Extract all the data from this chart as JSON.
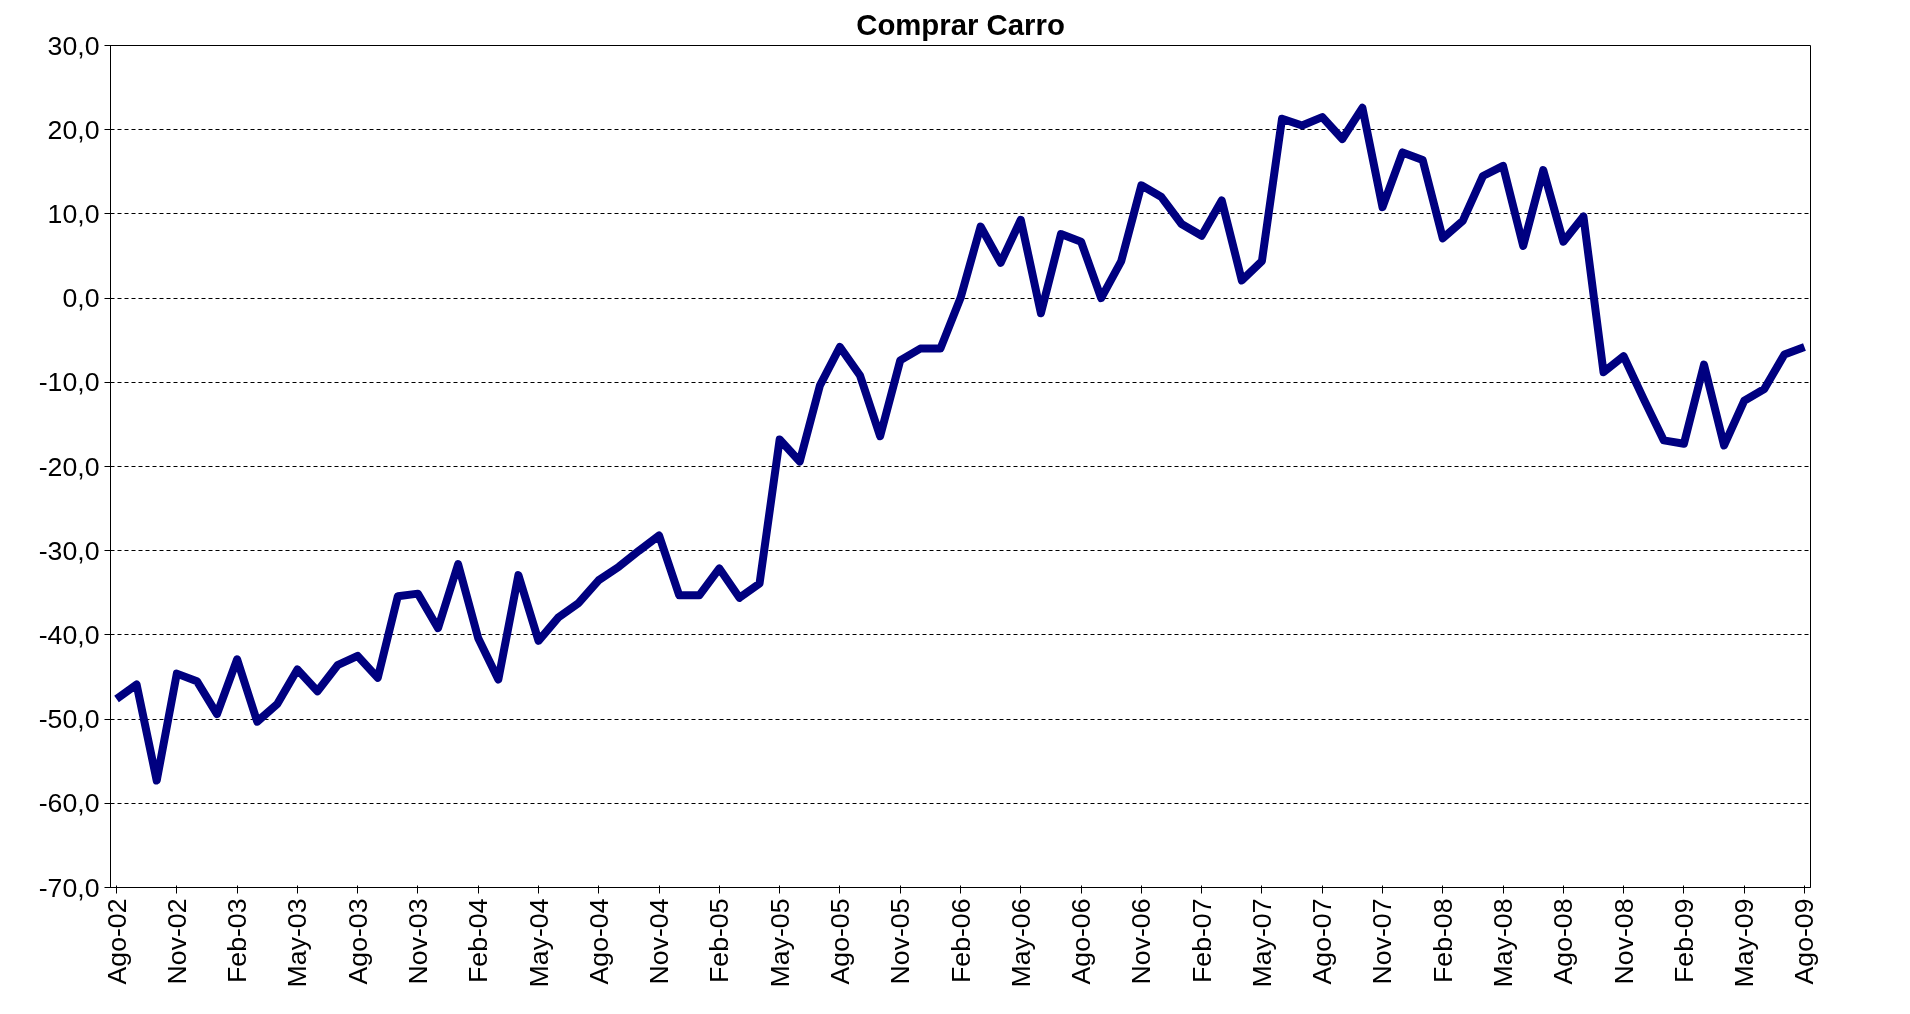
{
  "chart_data": {
    "type": "line",
    "title": "Comprar Carro",
    "categories": [
      "Ago-02",
      null,
      null,
      "Nov-02",
      null,
      null,
      "Feb-03",
      null,
      null,
      "May-03",
      null,
      null,
      "Ago-03",
      null,
      null,
      "Nov-03",
      null,
      null,
      "Feb-04",
      null,
      null,
      "May-04",
      null,
      null,
      "Ago-04",
      null,
      null,
      "Nov-04",
      null,
      null,
      "Feb-05",
      null,
      null,
      "May-05",
      null,
      null,
      "Ago-05",
      null,
      null,
      "Nov-05",
      null,
      null,
      "Feb-06",
      null,
      null,
      "May-06",
      null,
      null,
      "Ago-06",
      null,
      null,
      "Nov-06",
      null,
      null,
      "Feb-07",
      null,
      null,
      "May-07",
      null,
      null,
      "Ago-07",
      null,
      null,
      "Nov-07",
      null,
      null,
      "Feb-08",
      null,
      null,
      "May-08",
      null,
      null,
      "Ago-08",
      null,
      null,
      "Nov-08",
      null,
      null,
      "Feb-09",
      null,
      null,
      "May-09",
      null,
      null,
      "Ago-09"
    ],
    "series": [
      {
        "color": "#000080",
        "values": [
          -47.6,
          -45.9,
          -57.3,
          -44.6,
          -45.5,
          -49.4,
          -42.9,
          -50.3,
          -48.2,
          -44.1,
          -46.7,
          -43.6,
          -42.5,
          -45.1,
          -35.4,
          -35.1,
          -39.2,
          -31.6,
          -40.4,
          -45.3,
          -32.9,
          -40.7,
          -37.9,
          -36.2,
          -33.5,
          -31.9,
          -30.0,
          -28.2,
          -35.3,
          -35.3,
          -32.1,
          -35.6,
          -33.9,
          -16.8,
          -19.4,
          -10.4,
          -5.8,
          -9.2,
          -16.4,
          -7.4,
          -6.0,
          -6.0,
          0.0,
          8.5,
          4.2,
          9.3,
          -1.8,
          7.6,
          6.7,
          0.0,
          4.4,
          13.4,
          12.0,
          8.8,
          7.4,
          11.6,
          2.1,
          4.4,
          21.3,
          20.5,
          21.5,
          18.9,
          22.6,
          10.8,
          17.3,
          16.4,
          7.1,
          9.2,
          14.5,
          15.7,
          6.2,
          15.2,
          6.7,
          9.7,
          -8.8,
          -6.9,
          -12.0,
          -16.9,
          -17.3,
          -7.9,
          -17.5,
          -12.2,
          -10.8,
          -6.7,
          -5.8
        ]
      }
    ],
    "ylim": [
      -70,
      30
    ],
    "yticks": [
      {
        "value": -70,
        "label": "-70,0"
      },
      {
        "value": -60,
        "label": "-60,0"
      },
      {
        "value": -50,
        "label": "-50,0"
      },
      {
        "value": -40,
        "label": "-40,0"
      },
      {
        "value": -30,
        "label": "-30,0"
      },
      {
        "value": -20,
        "label": "-20,0"
      },
      {
        "value": -10,
        "label": "-10,0"
      },
      {
        "value": 0,
        "label": "0,0"
      },
      {
        "value": 10,
        "label": "10,0"
      },
      {
        "value": 20,
        "label": "20,0"
      },
      {
        "value": 30,
        "label": "30,0"
      }
    ],
    "grid": "y",
    "marker": "none",
    "line_style": "solid"
  }
}
